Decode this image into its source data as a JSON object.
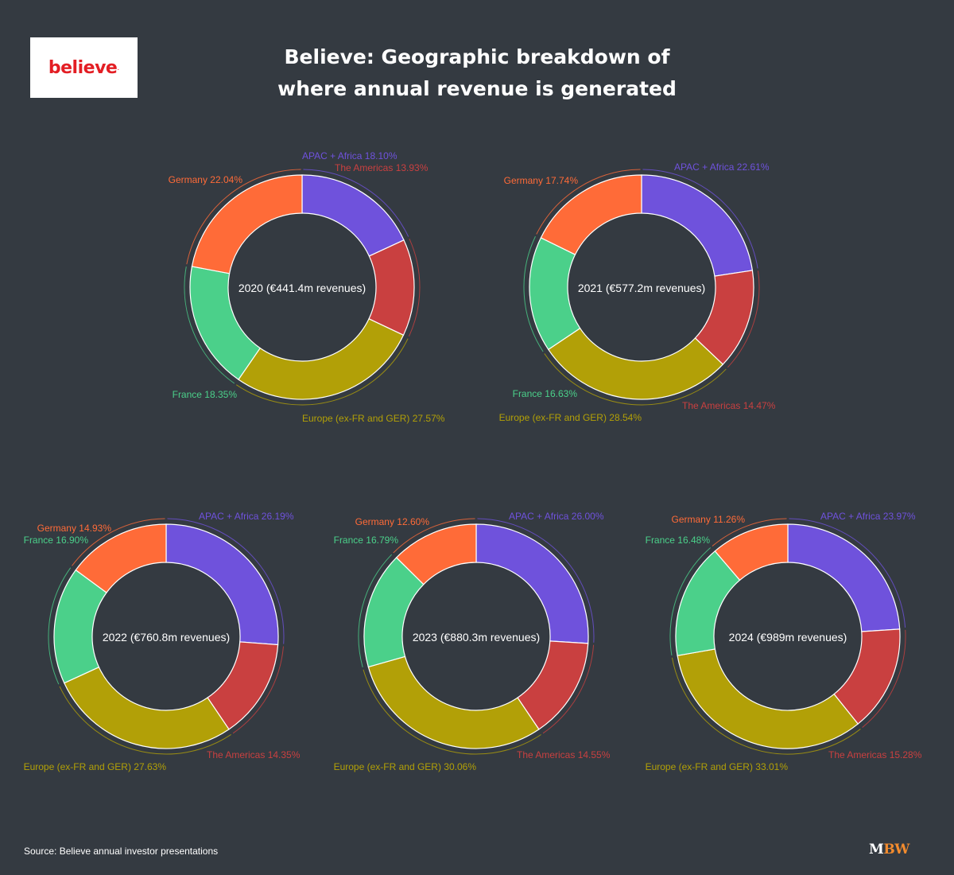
{
  "header": {
    "logo_text": "believe",
    "logo_dot": ".",
    "title_line1": "Believe: Geographic breakdown of",
    "title_line2": "where annual revenue is generated"
  },
  "footer": {
    "source": "Source: Believe annual investor presentations",
    "brand_m": "M",
    "brand_bw": "BW"
  },
  "colors": {
    "APAC + Africa": "#6f52dc",
    "The Americas": "#c94040",
    "Europe (ex-FR and GER)": "#b2a007",
    "France": "#4bd08a",
    "Germany": "#ff6b38",
    "background": "#343a41",
    "logo_red": "#e31e24",
    "brand_orange": "#f28b2e"
  },
  "chart_data": [
    {
      "type": "pie",
      "year": "2020",
      "center_label": "2020 (€441.4m revenues)",
      "categories": [
        "APAC + Africa",
        "The Americas",
        "Europe (ex-FR and GER)",
        "France",
        "Germany"
      ],
      "values": [
        18.1,
        13.93,
        27.57,
        18.35,
        22.04
      ],
      "labels": [
        "APAC + Africa 18.10%",
        "The Americas 13.93%",
        "Europe (ex-FR and GER) 27.57%",
        "France 18.35%",
        "Germany 22.04%"
      ]
    },
    {
      "type": "pie",
      "year": "2021",
      "center_label": "2021 (€577.2m revenues)",
      "categories": [
        "APAC + Africa",
        "The Americas",
        "Europe (ex-FR and GER)",
        "France",
        "Germany"
      ],
      "values": [
        22.61,
        14.47,
        28.54,
        16.63,
        17.74
      ],
      "labels": [
        "APAC + Africa 22.61%",
        "The Americas 14.47%",
        "Europe (ex-FR and GER) 28.54%",
        "France 16.63%",
        "Germany 17.74%"
      ]
    },
    {
      "type": "pie",
      "year": "2022",
      "center_label": "2022 (€760.8m revenues)",
      "categories": [
        "APAC + Africa",
        "The Americas",
        "Europe (ex-FR and GER)",
        "France",
        "Germany"
      ],
      "values": [
        26.19,
        14.35,
        27.63,
        16.9,
        14.93
      ],
      "labels": [
        "APAC + Africa 26.19%",
        "The Americas 14.35%",
        "Europe (ex-FR and GER) 27.63%",
        "France 16.90%",
        "Germany 14.93%"
      ]
    },
    {
      "type": "pie",
      "year": "2023",
      "center_label": "2023 (€880.3m revenues)",
      "categories": [
        "APAC + Africa",
        "The Americas",
        "Europe (ex-FR and GER)",
        "France",
        "Germany"
      ],
      "values": [
        26.0,
        14.55,
        30.06,
        16.79,
        12.6
      ],
      "labels": [
        "APAC + Africa 26.00%",
        "The Americas 14.55%",
        "Europe (ex-FR and GER) 30.06%",
        "France 16.79%",
        "Germany 12.60%"
      ]
    },
    {
      "type": "pie",
      "year": "2024",
      "center_label": "2024 (€989m revenues)",
      "categories": [
        "APAC + Africa",
        "The Americas",
        "Europe (ex-FR and GER)",
        "France",
        "Germany"
      ],
      "values": [
        23.97,
        15.28,
        33.01,
        16.48,
        11.26
      ],
      "labels": [
        "APAC + Africa 23.97%",
        "The Americas 15.28%",
        "Europe (ex-FR and GER) 33.01%",
        "France 16.48%",
        "Germany 11.26%"
      ]
    }
  ]
}
